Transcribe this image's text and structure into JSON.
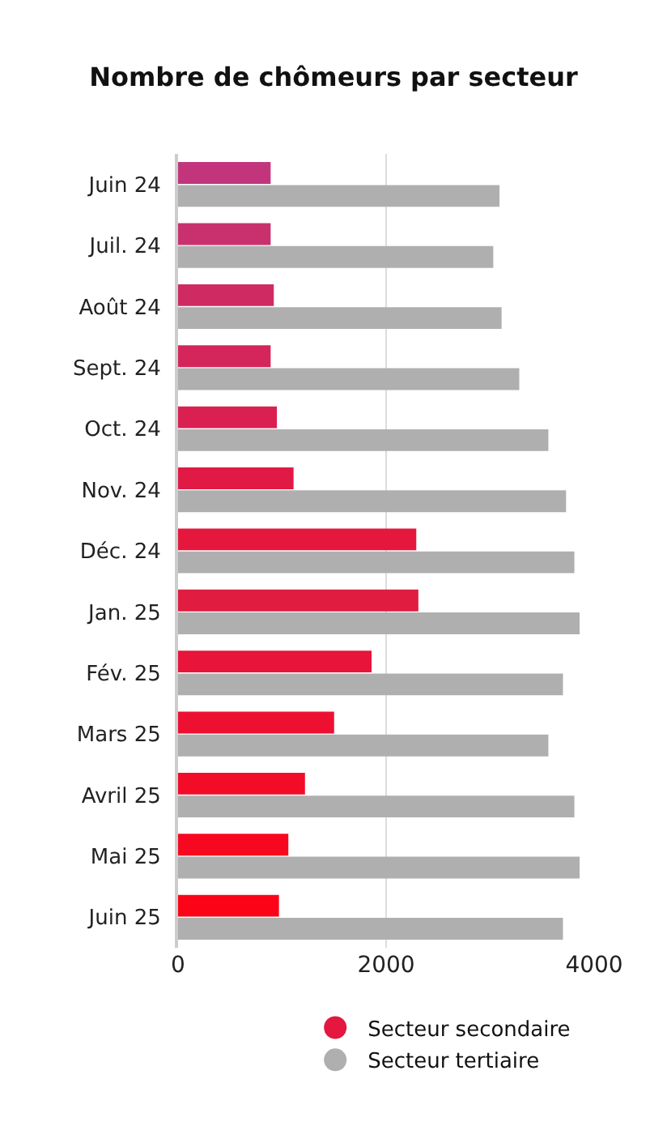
{
  "chart_data": {
    "type": "bar",
    "orientation": "horizontal",
    "title": "Nombre de chômeurs par secteur",
    "categories": [
      "Juin 24",
      "Juil. 24",
      "Août 24",
      "Sept. 24",
      "Oct. 24",
      "Nov. 24",
      "Déc. 24",
      "Jan. 25",
      "Fév. 25",
      "Mars 25",
      "Avril 25",
      "Mai 25",
      "Juin 25"
    ],
    "series": [
      {
        "name": "Secteur secondaire",
        "color": "#e3173f",
        "colors": [
          "#c2357c",
          "#c8316e",
          "#cf2a62",
          "#d4265a",
          "#da2050",
          "#e01a45",
          "#e6173c",
          "#e01c40",
          "#e8143a",
          "#ee1030",
          "#f30c28",
          "#f80820",
          "#fc0418"
        ],
        "values": [
          890,
          890,
          920,
          890,
          950,
          1110,
          2290,
          2310,
          1860,
          1500,
          1220,
          1060,
          970
        ]
      },
      {
        "name": "Secteur tertiaire",
        "color": "#afafaf",
        "values": [
          3090,
          3030,
          3110,
          3280,
          3560,
          3730,
          3810,
          3860,
          3700,
          3560,
          3810,
          3860,
          3700
        ]
      }
    ],
    "xlim": [
      0,
      4000
    ],
    "xticks": [
      0,
      2000,
      4000
    ],
    "grid": "x",
    "legend": "bottom"
  }
}
